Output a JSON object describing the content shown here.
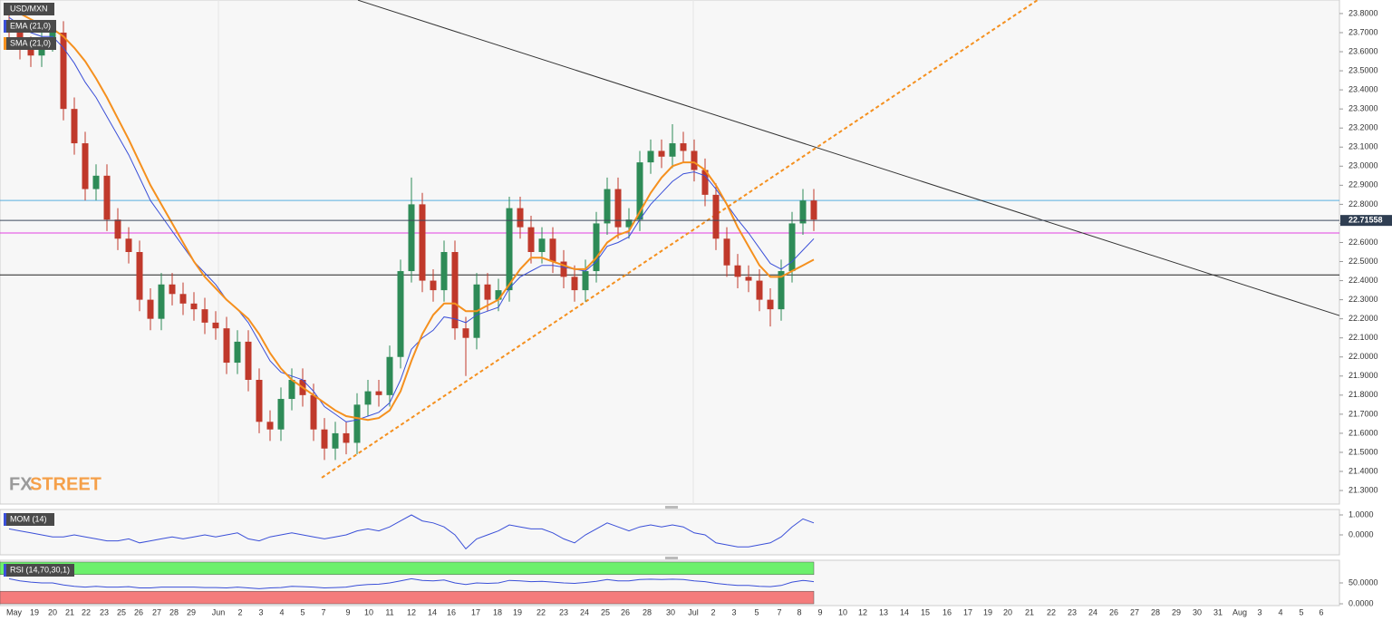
{
  "chart_data": {
    "type": "candlestick",
    "symbol": "USD/MXN",
    "up_color": "#2e8b57",
    "down_color": "#c0392b",
    "open": [
      23.76,
      23.7,
      23.62,
      23.58,
      23.66,
      23.7,
      23.3,
      23.12,
      22.88,
      22.95,
      22.72,
      22.62,
      22.55,
      22.3,
      22.2,
      22.38,
      22.33,
      22.28,
      22.25,
      22.18,
      22.15,
      21.97,
      22.08,
      21.88,
      21.66,
      21.62,
      21.78,
      21.88,
      21.8,
      21.62,
      21.52,
      21.6,
      21.55,
      21.75,
      21.82,
      21.8,
      22.0,
      22.45,
      22.8,
      22.4,
      22.35,
      22.55,
      22.15,
      22.1,
      22.38,
      22.3,
      22.35,
      22.78,
      22.68,
      22.55,
      22.62,
      22.5,
      22.42,
      22.35,
      22.45,
      22.7,
      22.88,
      22.68,
      22.72,
      23.02,
      23.08,
      23.05,
      23.12,
      23.08,
      22.98,
      22.85,
      22.62,
      22.48,
      22.42,
      22.4,
      22.3,
      22.25,
      22.45,
      22.7,
      22.82
    ],
    "high": [
      23.8,
      23.76,
      23.68,
      23.72,
      23.76,
      23.76,
      23.36,
      23.18,
      23.01,
      23.01,
      22.78,
      22.68,
      22.61,
      22.36,
      22.44,
      22.44,
      22.39,
      22.34,
      22.31,
      22.24,
      22.21,
      22.14,
      22.14,
      21.94,
      21.72,
      21.84,
      21.94,
      21.94,
      21.86,
      21.68,
      21.66,
      21.66,
      21.81,
      21.88,
      21.88,
      22.06,
      22.51,
      22.94,
      22.86,
      22.46,
      22.61,
      22.61,
      22.21,
      22.44,
      22.44,
      22.41,
      22.84,
      22.84,
      22.74,
      22.68,
      22.68,
      22.56,
      22.48,
      22.51,
      22.76,
      22.94,
      22.94,
      22.78,
      23.08,
      23.14,
      23.14,
      23.22,
      23.18,
      23.14,
      23.04,
      22.91,
      22.68,
      22.54,
      22.48,
      22.46,
      22.36,
      22.51,
      22.76,
      22.88,
      22.88
    ],
    "low": [
      23.64,
      23.56,
      23.52,
      23.52,
      23.6,
      23.24,
      23.06,
      22.82,
      22.82,
      22.66,
      22.56,
      22.49,
      22.24,
      22.14,
      22.14,
      22.27,
      22.22,
      22.19,
      22.12,
      22.09,
      21.91,
      21.91,
      21.82,
      21.6,
      21.56,
      21.56,
      21.72,
      21.74,
      21.56,
      21.46,
      21.46,
      21.49,
      21.49,
      21.69,
      21.74,
      21.74,
      21.94,
      22.39,
      22.34,
      22.29,
      22.29,
      22.09,
      21.9,
      22.04,
      22.24,
      22.24,
      22.29,
      22.62,
      22.49,
      22.49,
      22.44,
      22.36,
      22.29,
      22.29,
      22.39,
      22.64,
      22.62,
      22.62,
      22.66,
      22.96,
      22.99,
      22.99,
      23.02,
      22.92,
      22.79,
      22.56,
      22.42,
      22.36,
      22.34,
      22.24,
      22.16,
      22.19,
      22.39,
      22.64,
      22.66
    ],
    "close": [
      23.7,
      23.62,
      23.58,
      23.66,
      23.7,
      23.3,
      23.12,
      22.88,
      22.95,
      22.72,
      22.62,
      22.55,
      22.3,
      22.2,
      22.38,
      22.33,
      22.28,
      22.25,
      22.18,
      22.15,
      21.97,
      22.08,
      21.88,
      21.66,
      21.62,
      21.78,
      21.88,
      21.8,
      21.62,
      21.52,
      21.6,
      21.55,
      21.75,
      21.82,
      21.8,
      22.0,
      22.45,
      22.8,
      22.4,
      22.35,
      22.55,
      22.15,
      22.1,
      22.38,
      22.3,
      22.35,
      22.78,
      22.68,
      22.55,
      22.62,
      22.5,
      22.42,
      22.35,
      22.45,
      22.7,
      22.88,
      22.68,
      22.72,
      23.02,
      23.08,
      23.05,
      23.12,
      23.08,
      22.98,
      22.85,
      22.62,
      22.48,
      22.42,
      22.4,
      22.3,
      22.25,
      22.45,
      22.7,
      22.82,
      22.72
    ],
    "indicators": [
      {
        "name": "EMA (21,0)",
        "color": "#3a4fd8",
        "values": [
          23.78,
          23.74,
          23.7,
          23.68,
          23.68,
          23.62,
          23.54,
          23.44,
          23.36,
          23.26,
          23.16,
          23.06,
          22.94,
          22.82,
          22.74,
          22.66,
          22.58,
          22.5,
          22.44,
          22.38,
          22.3,
          22.25,
          22.18,
          22.08,
          21.98,
          21.92,
          21.9,
          21.88,
          21.82,
          21.74,
          21.7,
          21.66,
          21.67,
          21.69,
          21.71,
          21.76,
          21.88,
          22.04,
          22.1,
          22.14,
          22.21,
          22.2,
          22.18,
          22.22,
          22.24,
          22.26,
          22.36,
          22.42,
          22.45,
          22.48,
          22.48,
          22.47,
          22.46,
          22.45,
          22.5,
          22.58,
          22.6,
          22.63,
          22.72,
          22.8,
          22.86,
          22.92,
          22.96,
          22.97,
          22.95,
          22.88,
          22.8,
          22.72,
          22.65,
          22.57,
          22.49,
          22.46,
          22.5,
          22.56,
          22.62
        ]
      },
      {
        "name": "SMA (21,0)",
        "color": "#f5901e",
        "values": [
          23.82,
          23.8,
          23.77,
          23.74,
          23.72,
          23.68,
          23.62,
          23.55,
          23.46,
          23.36,
          23.25,
          23.14,
          23.02,
          22.9,
          22.8,
          22.7,
          22.6,
          22.5,
          22.42,
          22.36,
          22.3,
          22.25,
          22.2,
          22.12,
          22.02,
          21.94,
          21.88,
          21.84,
          21.8,
          21.76,
          21.72,
          21.69,
          21.68,
          21.67,
          21.68,
          21.72,
          21.82,
          21.98,
          22.12,
          22.22,
          22.28,
          22.28,
          22.24,
          22.24,
          22.27,
          22.3,
          22.38,
          22.46,
          22.52,
          22.52,
          22.5,
          22.48,
          22.46,
          22.46,
          22.52,
          22.6,
          22.64,
          22.66,
          22.76,
          22.86,
          22.94,
          23.0,
          23.02,
          23.02,
          22.98,
          22.9,
          22.8,
          22.68,
          22.58,
          22.48,
          22.42,
          22.42,
          22.45,
          22.48,
          22.51
        ]
      }
    ],
    "levels": [
      {
        "value": 22.82,
        "color": "#5aaee0"
      },
      {
        "value": 22.65,
        "color": "#e040e0"
      },
      {
        "value": 22.43,
        "color": "#222222"
      }
    ],
    "last_price": 22.71558,
    "trendlines": [
      {
        "color": "#333333",
        "style": "solid",
        "from": 23.87,
        "to": 22.217
      },
      {
        "color": "#f5901e",
        "style": "dotted",
        "from": 21.367,
        "to": 23.871
      }
    ],
    "ylim": [
      21.229,
      23.871
    ],
    "yticks": [
      {
        "value": 23.8,
        "label": "23.8000"
      },
      {
        "value": 23.7,
        "label": "23.7000"
      },
      {
        "value": 23.6,
        "label": "23.6000"
      },
      {
        "value": 23.5,
        "label": "23.5000"
      },
      {
        "value": 23.4,
        "label": "23.4000"
      },
      {
        "value": 23.3,
        "label": "23.3000"
      },
      {
        "value": 23.2,
        "label": "23.2000"
      },
      {
        "value": 23.1,
        "label": "23.1000"
      },
      {
        "value": 23.0,
        "label": "23.0000"
      },
      {
        "value": 22.9,
        "label": "22.9000"
      },
      {
        "value": 22.8,
        "label": "22.8000"
      },
      {
        "value": 22.7,
        "label": "22.7000"
      },
      {
        "value": 22.6,
        "label": "22.6000"
      },
      {
        "value": 22.5,
        "label": "22.5000"
      },
      {
        "value": 22.4,
        "label": "22.4000"
      },
      {
        "value": 22.3,
        "label": "22.3000"
      },
      {
        "value": 22.2,
        "label": "22.2000"
      },
      {
        "value": 22.1,
        "label": "22.1000"
      },
      {
        "value": 22.0,
        "label": "22.0000"
      },
      {
        "value": 21.9,
        "label": "21.9000"
      },
      {
        "value": 21.8,
        "label": "21.8000"
      },
      {
        "value": 21.7,
        "label": "21.7000"
      },
      {
        "value": 21.6,
        "label": "21.6000"
      },
      {
        "value": 21.5,
        "label": "21.5000"
      },
      {
        "value": 21.4,
        "label": "21.4000"
      },
      {
        "value": 21.3,
        "label": "21.3000"
      }
    ],
    "x_labels": [
      "May",
      "19",
      "20",
      "21",
      "22",
      "23",
      "25",
      "26",
      "27",
      "28",
      "29",
      "Jun",
      "2",
      "3",
      "4",
      "5",
      "7",
      "9",
      "10",
      "11",
      "12",
      "14",
      "16",
      "17",
      "18",
      "19",
      "22",
      "23",
      "24",
      "25",
      "26",
      "28",
      "30",
      "Jul",
      "2",
      "3",
      "5",
      "7",
      "8",
      "9",
      "10",
      "12",
      "13",
      "14",
      "15",
      "16",
      "17",
      "19",
      "20",
      "21",
      "22",
      "23",
      "24",
      "26",
      "27",
      "28",
      "29",
      "30",
      "31",
      "Aug",
      "3",
      "4",
      "5",
      "6"
    ],
    "watermark": [
      "FX",
      "STREET"
    ],
    "panels": [
      {
        "type": "line",
        "name": "MOM (14)",
        "color": "#3a4fd8",
        "ylim": [
          -1.0,
          1.273
        ],
        "yticks": [
          {
            "value": 1,
            "label": "1.0000"
          },
          {
            "value": 0,
            "label": "0.0000"
          }
        ],
        "values": [
          0.3,
          0.2,
          0.1,
          0.0,
          -0.1,
          -0.1,
          0.0,
          -0.1,
          -0.2,
          -0.3,
          -0.3,
          -0.2,
          -0.4,
          -0.3,
          -0.2,
          -0.1,
          -0.2,
          -0.1,
          0.0,
          -0.1,
          0.0,
          0.1,
          -0.2,
          -0.3,
          -0.1,
          0.0,
          0.1,
          0.0,
          -0.1,
          -0.2,
          -0.1,
          0.0,
          0.2,
          0.3,
          0.2,
          0.4,
          0.7,
          1.0,
          0.7,
          0.6,
          0.4,
          0.0,
          -0.7,
          -0.2,
          0.0,
          0.2,
          0.5,
          0.4,
          0.3,
          0.3,
          0.1,
          -0.2,
          -0.4,
          0.0,
          0.3,
          0.6,
          0.4,
          0.2,
          0.4,
          0.5,
          0.4,
          0.5,
          0.4,
          0.1,
          0.0,
          -0.4,
          -0.5,
          -0.6,
          -0.6,
          -0.5,
          -0.4,
          -0.1,
          0.4,
          0.8,
          0.6
        ]
      },
      {
        "type": "line",
        "name": "RSI (14,70,30,1)",
        "color": "#3a4fd8",
        "ylim": [
          -4.3,
          104.3
        ],
        "yticks": [
          {
            "value": 50,
            "label": "50.0000"
          },
          {
            "value": 0,
            "label": "0.0000"
          }
        ],
        "bands": [
          {
            "from": 70,
            "to": 100,
            "color": "#6cf06c"
          },
          {
            "from": 0,
            "to": 30,
            "color": "#f47c7c"
          }
        ],
        "values": [
          60,
          55,
          52,
          50,
          50,
          45,
          42,
          40,
          42,
          40,
          40,
          41,
          38,
          38,
          40,
          40,
          40,
          40,
          39,
          39,
          38,
          40,
          38,
          36,
          38,
          39,
          42,
          41,
          40,
          38,
          39,
          40,
          44,
          46,
          47,
          50,
          55,
          60,
          56,
          55,
          57,
          50,
          46,
          50,
          49,
          50,
          56,
          55,
          53,
          54,
          52,
          50,
          49,
          51,
          54,
          58,
          55,
          55,
          58,
          59,
          58,
          59,
          58,
          55,
          53,
          49,
          46,
          44,
          44,
          42,
          41,
          44,
          52,
          56,
          53
        ]
      }
    ]
  }
}
